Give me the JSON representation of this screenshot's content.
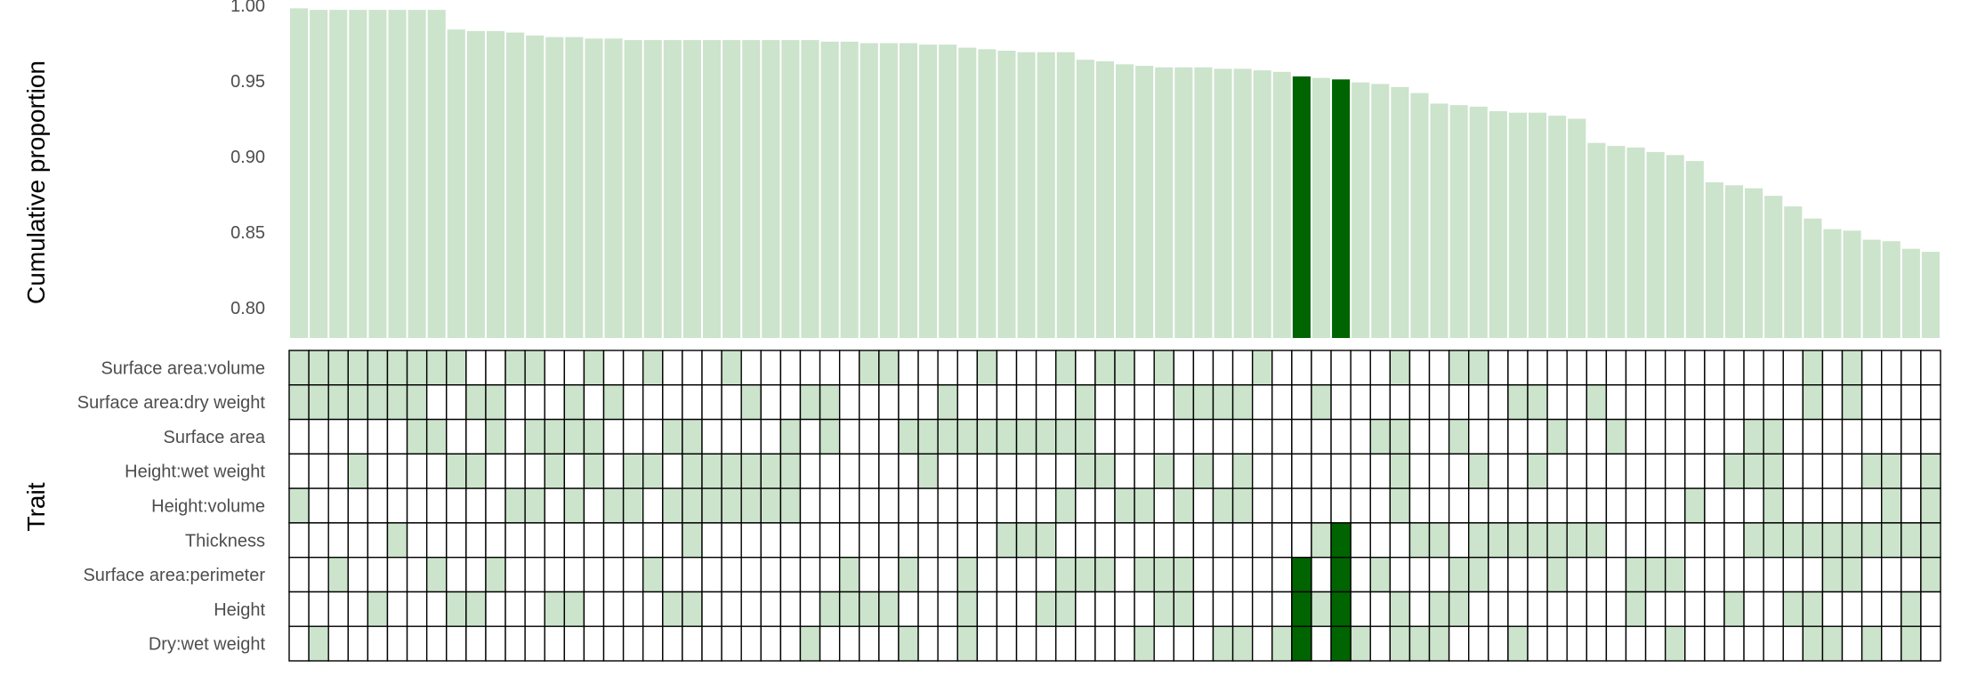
{
  "chart_data": {
    "type": "bar",
    "ylabel": "Cumulative proportion",
    "trait_axis_label": "Trait",
    "ylim": [
      0.78,
      1.0
    ],
    "yticks": [
      "0.80",
      "0.85",
      "0.90",
      "0.95",
      "1.00"
    ],
    "colors": {
      "bar": "#cce3cc",
      "highlight": "#006400",
      "cell_on": "#cce3cc",
      "cell_off": "#ffffff",
      "grid": "#000000"
    },
    "highlight_columns": [
      51,
      53
    ],
    "traits": [
      "Surface area:volume",
      "Surface area:dry weight",
      "Surface area",
      "Height:wet weight",
      "Height:volume",
      "Thickness",
      "Surface area:perimeter",
      "Height",
      "Dry:wet weight"
    ],
    "values": [
      0.998,
      0.997,
      0.997,
      0.997,
      0.997,
      0.997,
      0.997,
      0.997,
      0.984,
      0.983,
      0.983,
      0.982,
      0.98,
      0.979,
      0.979,
      0.978,
      0.978,
      0.977,
      0.977,
      0.977,
      0.977,
      0.977,
      0.977,
      0.977,
      0.977,
      0.977,
      0.977,
      0.976,
      0.976,
      0.975,
      0.975,
      0.975,
      0.974,
      0.974,
      0.972,
      0.971,
      0.97,
      0.969,
      0.969,
      0.969,
      0.964,
      0.963,
      0.961,
      0.96,
      0.959,
      0.959,
      0.959,
      0.958,
      0.958,
      0.957,
      0.956,
      0.953,
      0.952,
      0.951,
      0.949,
      0.948,
      0.946,
      0.942,
      0.935,
      0.934,
      0.933,
      0.93,
      0.929,
      0.929,
      0.927,
      0.925,
      0.909,
      0.907,
      0.906,
      0.903,
      0.901,
      0.897,
      0.883,
      0.881,
      0.879,
      0.874,
      0.867,
      0.859,
      0.852,
      0.851,
      0.845,
      0.844,
      0.839,
      0.837
    ],
    "cells": [
      [
        1,
        1,
        1,
        1,
        1,
        1,
        1,
        1,
        1,
        0,
        0,
        1,
        1,
        0,
        0,
        1,
        0,
        0,
        1,
        0,
        0,
        0,
        1,
        0,
        0,
        0,
        0,
        0,
        0,
        1,
        1,
        0,
        0,
        0,
        0,
        1,
        0,
        0,
        0,
        1,
        0,
        1,
        1,
        0,
        1,
        0,
        0,
        0,
        0,
        1,
        0,
        0,
        0,
        0,
        0,
        0,
        1,
        0,
        0,
        1,
        1,
        0,
        0,
        0,
        0,
        0,
        0,
        0,
        0,
        0,
        0,
        0,
        0,
        0,
        0,
        0,
        0,
        1,
        0,
        1,
        0,
        0,
        0,
        0
      ],
      [
        1,
        1,
        1,
        1,
        1,
        1,
        1,
        0,
        0,
        1,
        1,
        0,
        0,
        0,
        1,
        0,
        1,
        0,
        0,
        0,
        0,
        0,
        0,
        1,
        0,
        0,
        1,
        1,
        0,
        0,
        0,
        0,
        0,
        1,
        0,
        0,
        0,
        0,
        0,
        0,
        1,
        0,
        0,
        0,
        0,
        1,
        1,
        1,
        1,
        0,
        0,
        0,
        1,
        0,
        0,
        0,
        0,
        0,
        0,
        0,
        0,
        0,
        1,
        1,
        0,
        0,
        1,
        0,
        0,
        0,
        0,
        0,
        0,
        0,
        0,
        0,
        0,
        1,
        0,
        1,
        0,
        0,
        0,
        0
      ],
      [
        0,
        0,
        0,
        0,
        0,
        0,
        1,
        1,
        0,
        0,
        1,
        0,
        1,
        1,
        1,
        1,
        0,
        0,
        0,
        1,
        1,
        0,
        0,
        0,
        0,
        1,
        0,
        1,
        0,
        0,
        0,
        1,
        1,
        1,
        1,
        1,
        1,
        1,
        1,
        1,
        1,
        0,
        0,
        0,
        0,
        0,
        0,
        0,
        0,
        0,
        0,
        0,
        0,
        0,
        0,
        1,
        1,
        0,
        0,
        1,
        0,
        0,
        0,
        0,
        1,
        0,
        0,
        1,
        0,
        0,
        0,
        0,
        0,
        0,
        1,
        1,
        0,
        0,
        0,
        0,
        0,
        0,
        0,
        0
      ],
      [
        0,
        0,
        0,
        1,
        0,
        0,
        0,
        0,
        1,
        1,
        0,
        0,
        0,
        1,
        0,
        1,
        0,
        1,
        1,
        0,
        1,
        1,
        1,
        1,
        1,
        1,
        0,
        0,
        0,
        0,
        0,
        0,
        1,
        0,
        0,
        0,
        0,
        0,
        0,
        0,
        1,
        1,
        0,
        0,
        1,
        0,
        1,
        0,
        1,
        0,
        0,
        0,
        0,
        0,
        0,
        0,
        1,
        0,
        0,
        0,
        1,
        0,
        0,
        1,
        0,
        0,
        0,
        0,
        0,
        0,
        0,
        0,
        0,
        1,
        1,
        1,
        0,
        0,
        0,
        0,
        1,
        1,
        0,
        1
      ],
      [
        1,
        0,
        0,
        0,
        0,
        0,
        0,
        0,
        0,
        0,
        0,
        1,
        1,
        0,
        1,
        0,
        1,
        1,
        0,
        1,
        1,
        1,
        1,
        1,
        1,
        1,
        0,
        0,
        0,
        0,
        0,
        0,
        0,
        0,
        0,
        0,
        0,
        0,
        0,
        1,
        0,
        0,
        1,
        1,
        0,
        1,
        0,
        1,
        1,
        0,
        0,
        0,
        0,
        0,
        0,
        0,
        1,
        0,
        0,
        0,
        0,
        0,
        0,
        0,
        0,
        0,
        0,
        0,
        0,
        0,
        0,
        1,
        0,
        0,
        0,
        1,
        0,
        0,
        0,
        0,
        0,
        1,
        0,
        1
      ],
      [
        0,
        0,
        0,
        0,
        0,
        1,
        0,
        0,
        0,
        0,
        0,
        0,
        0,
        0,
        0,
        0,
        0,
        0,
        0,
        0,
        1,
        0,
        0,
        0,
        0,
        0,
        0,
        0,
        0,
        0,
        0,
        0,
        0,
        0,
        0,
        0,
        1,
        1,
        1,
        0,
        0,
        0,
        0,
        0,
        0,
        0,
        0,
        0,
        0,
        0,
        0,
        0,
        1,
        1,
        0,
        0,
        0,
        1,
        1,
        0,
        1,
        1,
        1,
        1,
        1,
        1,
        1,
        0,
        0,
        0,
        0,
        0,
        0,
        0,
        1,
        1,
        1,
        1,
        1,
        1,
        1,
        1,
        1,
        1
      ],
      [
        0,
        0,
        1,
        0,
        0,
        0,
        0,
        1,
        0,
        0,
        1,
        0,
        0,
        0,
        0,
        0,
        0,
        0,
        1,
        0,
        0,
        0,
        0,
        0,
        0,
        0,
        0,
        0,
        1,
        0,
        0,
        1,
        0,
        0,
        1,
        0,
        0,
        0,
        0,
        1,
        1,
        1,
        0,
        1,
        1,
        1,
        0,
        0,
        0,
        0,
        0,
        1,
        0,
        1,
        0,
        1,
        0,
        0,
        0,
        1,
        1,
        0,
        0,
        0,
        1,
        0,
        0,
        0,
        1,
        1,
        1,
        0,
        0,
        0,
        0,
        0,
        0,
        0,
        1,
        1,
        0,
        0,
        0,
        1
      ],
      [
        0,
        0,
        0,
        0,
        1,
        0,
        0,
        0,
        1,
        1,
        0,
        0,
        0,
        1,
        1,
        0,
        0,
        0,
        0,
        1,
        1,
        0,
        0,
        0,
        0,
        0,
        0,
        1,
        1,
        1,
        1,
        0,
        0,
        0,
        1,
        0,
        0,
        0,
        1,
        1,
        0,
        0,
        0,
        0,
        1,
        1,
        0,
        0,
        0,
        0,
        0,
        1,
        1,
        1,
        0,
        0,
        1,
        0,
        1,
        1,
        0,
        0,
        0,
        0,
        0,
        0,
        0,
        0,
        1,
        0,
        0,
        0,
        0,
        1,
        0,
        0,
        1,
        1,
        0,
        0,
        0,
        0,
        1,
        0
      ],
      [
        0,
        1,
        0,
        0,
        0,
        0,
        0,
        0,
        0,
        0,
        0,
        0,
        0,
        0,
        0,
        0,
        0,
        0,
        0,
        0,
        0,
        0,
        0,
        0,
        0,
        0,
        1,
        0,
        0,
        0,
        0,
        1,
        0,
        0,
        1,
        0,
        0,
        0,
        0,
        0,
        0,
        0,
        0,
        1,
        0,
        0,
        0,
        1,
        1,
        0,
        1,
        1,
        0,
        1,
        1,
        0,
        1,
        1,
        1,
        0,
        0,
        0,
        1,
        0,
        0,
        0,
        0,
        0,
        0,
        0,
        1,
        0,
        0,
        0,
        0,
        0,
        0,
        1,
        1,
        0,
        1,
        0,
        1,
        0
      ]
    ]
  }
}
